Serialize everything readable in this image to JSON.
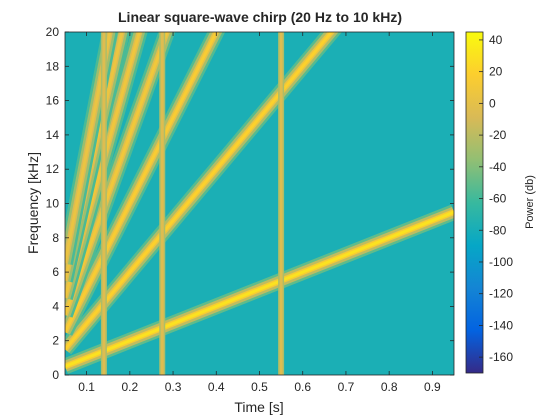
{
  "chart_data": {
    "type": "heatmap",
    "title": "Linear square-wave chirp (20 Hz to 10 kHz)",
    "xlabel": "Time [s]",
    "ylabel": "Frequency [kHz]",
    "xlim": [
      0.05,
      0.95
    ],
    "ylim": [
      0,
      20
    ],
    "xticks": [
      0.1,
      0.2,
      0.3,
      0.4,
      0.5,
      0.6,
      0.7,
      0.8,
      0.9
    ],
    "xtick_labels": [
      "0.1",
      "0.2",
      "0.3",
      "0.4",
      "0.5",
      "0.6",
      "0.7",
      "0.8",
      "0.9"
    ],
    "yticks": [
      0,
      2,
      4,
      6,
      8,
      10,
      12,
      14,
      16,
      18,
      20
    ],
    "ytick_labels": [
      "0",
      "2",
      "4",
      "6",
      "8",
      "10",
      "12",
      "14",
      "16",
      "18",
      "20"
    ],
    "colorbar": {
      "label": "Power (db)",
      "range": [
        -170,
        45
      ],
      "ticks": [
        40,
        20,
        0,
        -20,
        -40,
        -60,
        -80,
        -100,
        -120,
        -140,
        -160
      ],
      "tick_labels": [
        "40",
        "20",
        "0",
        "-20",
        "-40",
        "-60",
        "-80",
        "-100",
        "-120",
        "-140",
        "-160"
      ],
      "colormap": "parula"
    },
    "background_power_db": -78,
    "harmonics": [
      {
        "order": 1,
        "kHz_per_s": 10,
        "peak_db": 30
      },
      {
        "order": 3,
        "kHz_per_s": 30,
        "peak_db": 20
      },
      {
        "order": 5,
        "kHz_per_s": 50,
        "peak_db": 15
      },
      {
        "order": 7,
        "kHz_per_s": 70,
        "peak_db": 10
      },
      {
        "order": 9,
        "kHz_per_s": 90,
        "peak_db": 8
      },
      {
        "order": 11,
        "kHz_per_s": 110,
        "peak_db": 6
      },
      {
        "order": 13,
        "kHz_per_s": 130,
        "peak_db": 5
      }
    ],
    "alias_transients_s": [
      0.14,
      0.275,
      0.55
    ],
    "grid": false
  }
}
